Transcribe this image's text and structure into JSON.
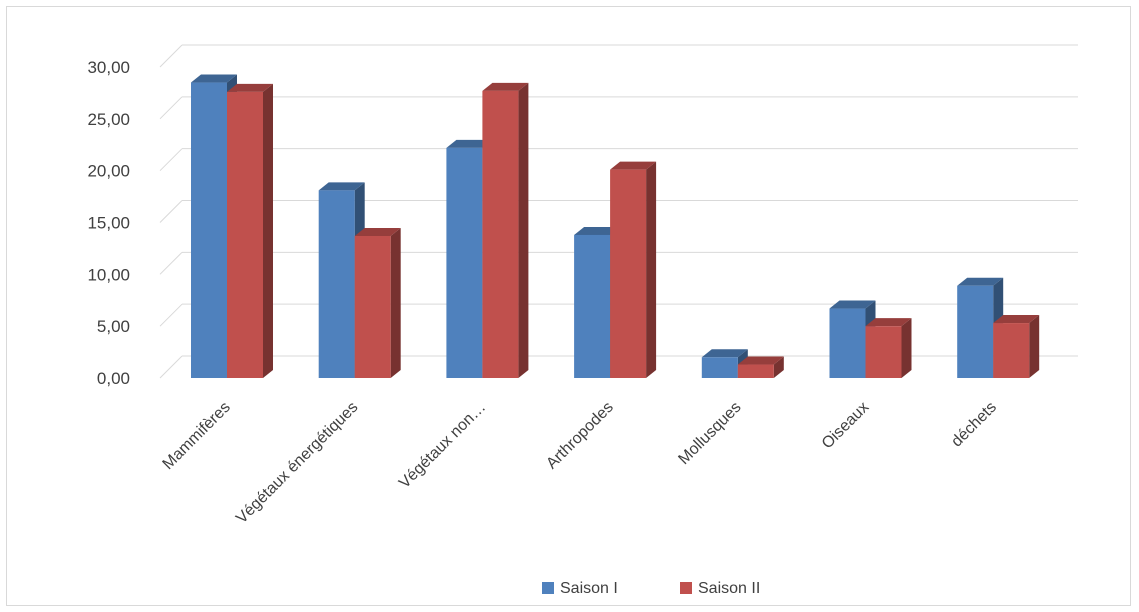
{
  "chart_data": {
    "type": "bar",
    "title": "",
    "xlabel": "",
    "ylabel": "",
    "ylim": [
      0,
      30
    ],
    "yticks": [
      "0,00",
      "5,00",
      "10,00",
      "15,00",
      "20,00",
      "25,00",
      "30,00"
    ],
    "categories": [
      "Mammifères",
      "Végétaux énergétiques",
      "Végétaux non…",
      "Arthropodes",
      "Mollusques",
      "Oiseaux",
      "déchets"
    ],
    "series": [
      {
        "name": "Saison I",
        "color": "#4f81bd",
        "values": [
          28.5,
          18.1,
          22.2,
          13.8,
          2.0,
          6.7,
          8.9
        ]
      },
      {
        "name": "Saison II",
        "color": "#c0504d",
        "values": [
          27.6,
          13.7,
          27.7,
          20.1,
          1.3,
          5.0,
          5.3
        ]
      }
    ],
    "grid": true,
    "legend": "bottom",
    "style": "3d-clustered-column"
  }
}
